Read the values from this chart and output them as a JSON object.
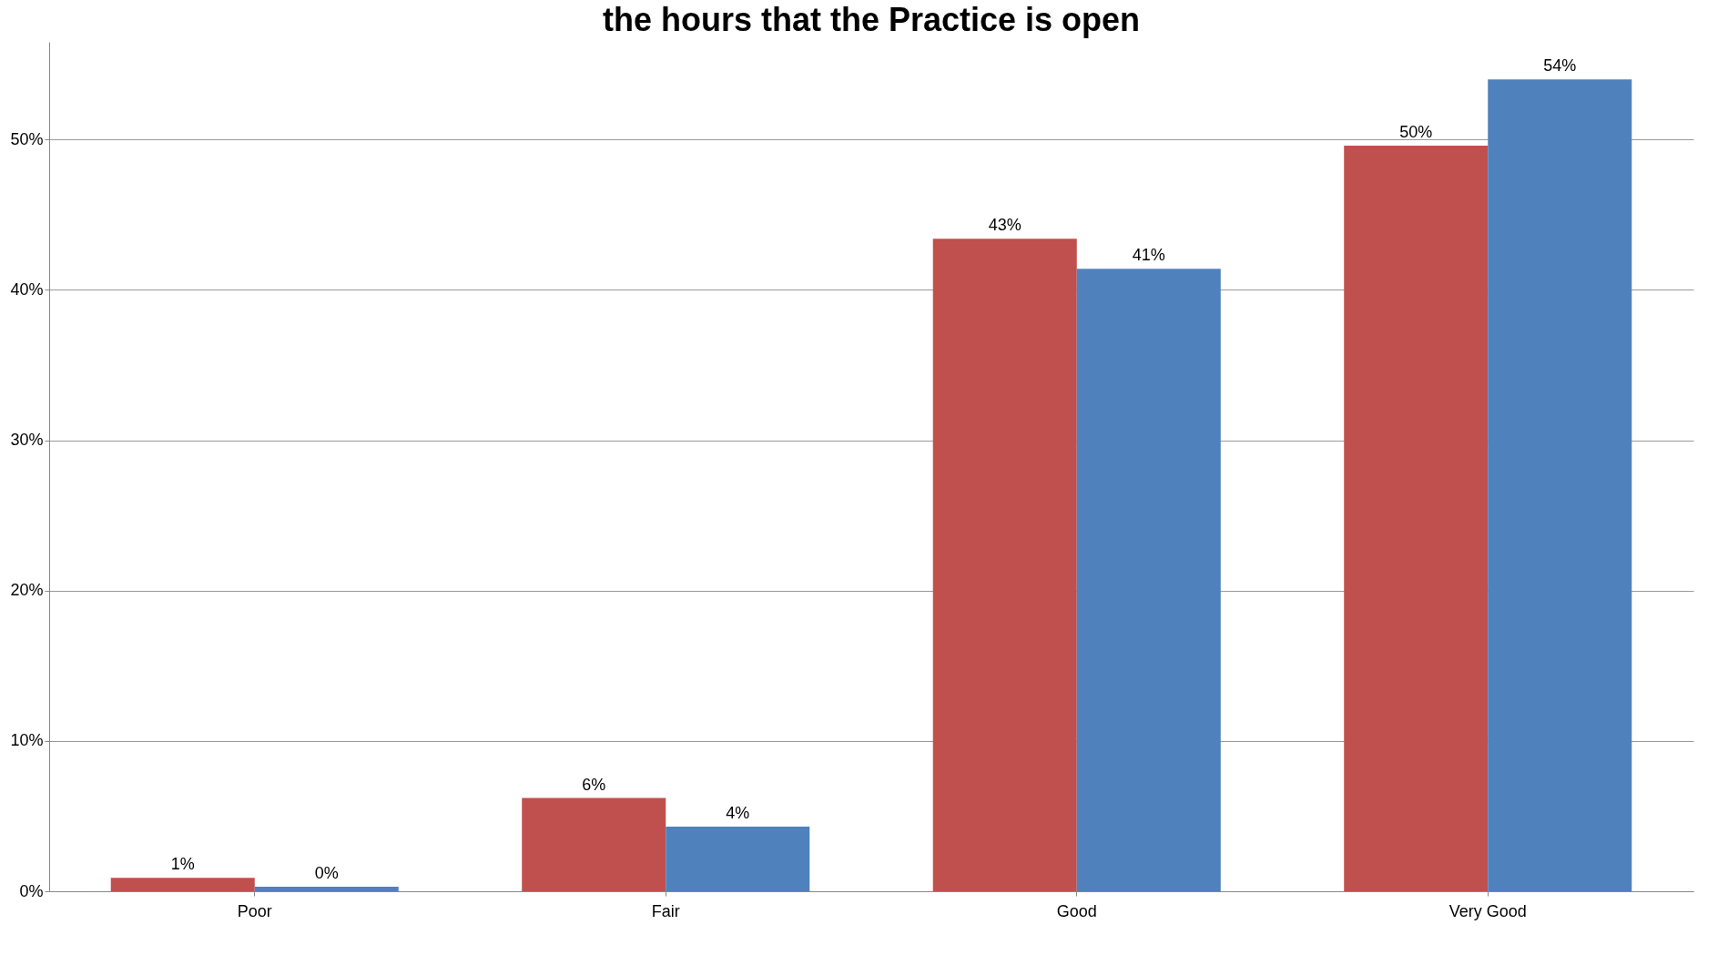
{
  "chart_data": {
    "type": "bar",
    "title": "the hours that the Practice is open",
    "categories": [
      "Poor",
      "Fair",
      "Good",
      "Very Good"
    ],
    "series": [
      {
        "color": "#c0504d",
        "values": [
          0.9,
          6.2,
          43.4,
          49.6
        ],
        "value_labels": [
          "1%",
          "6%",
          "43%",
          "50%"
        ]
      },
      {
        "color": "#4f81bd",
        "values": [
          0.3,
          4.3,
          41.4,
          54.0
        ],
        "value_labels": [
          "0%",
          "4%",
          "41%",
          "54%"
        ]
      }
    ],
    "ylim": [
      0,
      56.5
    ],
    "yticks": [
      {
        "value": 0,
        "label": "0%"
      },
      {
        "value": 10,
        "label": "10%"
      },
      {
        "value": 20,
        "label": "20%"
      },
      {
        "value": 30,
        "label": "30%"
      },
      {
        "value": 40,
        "label": "40%"
      },
      {
        "value": 50,
        "label": "50%"
      }
    ],
    "grid": "y",
    "legend": false
  }
}
